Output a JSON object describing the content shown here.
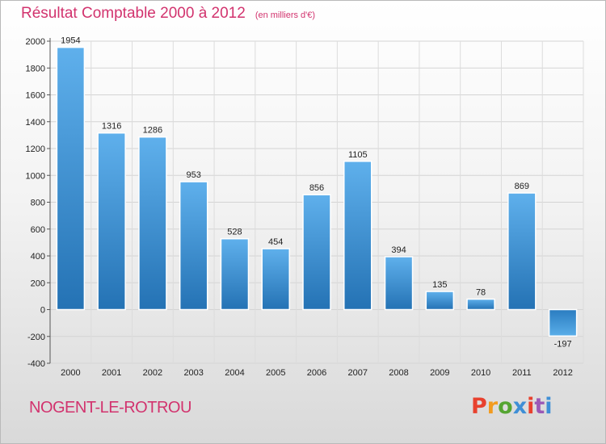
{
  "header": {
    "title": "Résultat Comptable 2000 à 2012",
    "subtitle": "(en milliers d'€)"
  },
  "footer": {
    "city": "NOGENT-LE-ROTROU",
    "logo_letters": [
      "P",
      "r",
      "o",
      "x",
      "i",
      "t",
      "i"
    ],
    "logo_colors": [
      "#e8412e",
      "#f29b1f",
      "#55a532",
      "#3e8fd6",
      "#e8412e",
      "#9b59b6",
      "#3e8fd6"
    ]
  },
  "chart_data": {
    "type": "bar",
    "title": "Résultat Comptable 2000 à 2012",
    "subtitle": "(en milliers d'€)",
    "categories": [
      "2000",
      "2001",
      "2002",
      "2003",
      "2004",
      "2005",
      "2006",
      "2007",
      "2008",
      "2009",
      "2010",
      "2011",
      "2012"
    ],
    "values": [
      1954,
      1316,
      1286,
      953,
      528,
      454,
      856,
      1105,
      394,
      135,
      78,
      869,
      -197
    ],
    "data_labels": [
      "1954",
      "1316",
      "1286",
      "953",
      "528",
      "454",
      "856",
      "1105",
      "394",
      "135",
      "78",
      "869",
      "-197"
    ],
    "ylim": [
      -400,
      2000
    ],
    "yticks": [
      -400,
      -200,
      0,
      200,
      400,
      600,
      800,
      1000,
      1200,
      1400,
      1600,
      1800,
      2000
    ],
    "ytick_labels": [
      "-400",
      "-200",
      "0",
      "200",
      "400",
      "600",
      "800",
      "1000",
      "1200",
      "1400",
      "1600",
      "1800",
      "2000"
    ],
    "grid": true,
    "legend": "none",
    "bar_color": "#3d8fd1"
  }
}
